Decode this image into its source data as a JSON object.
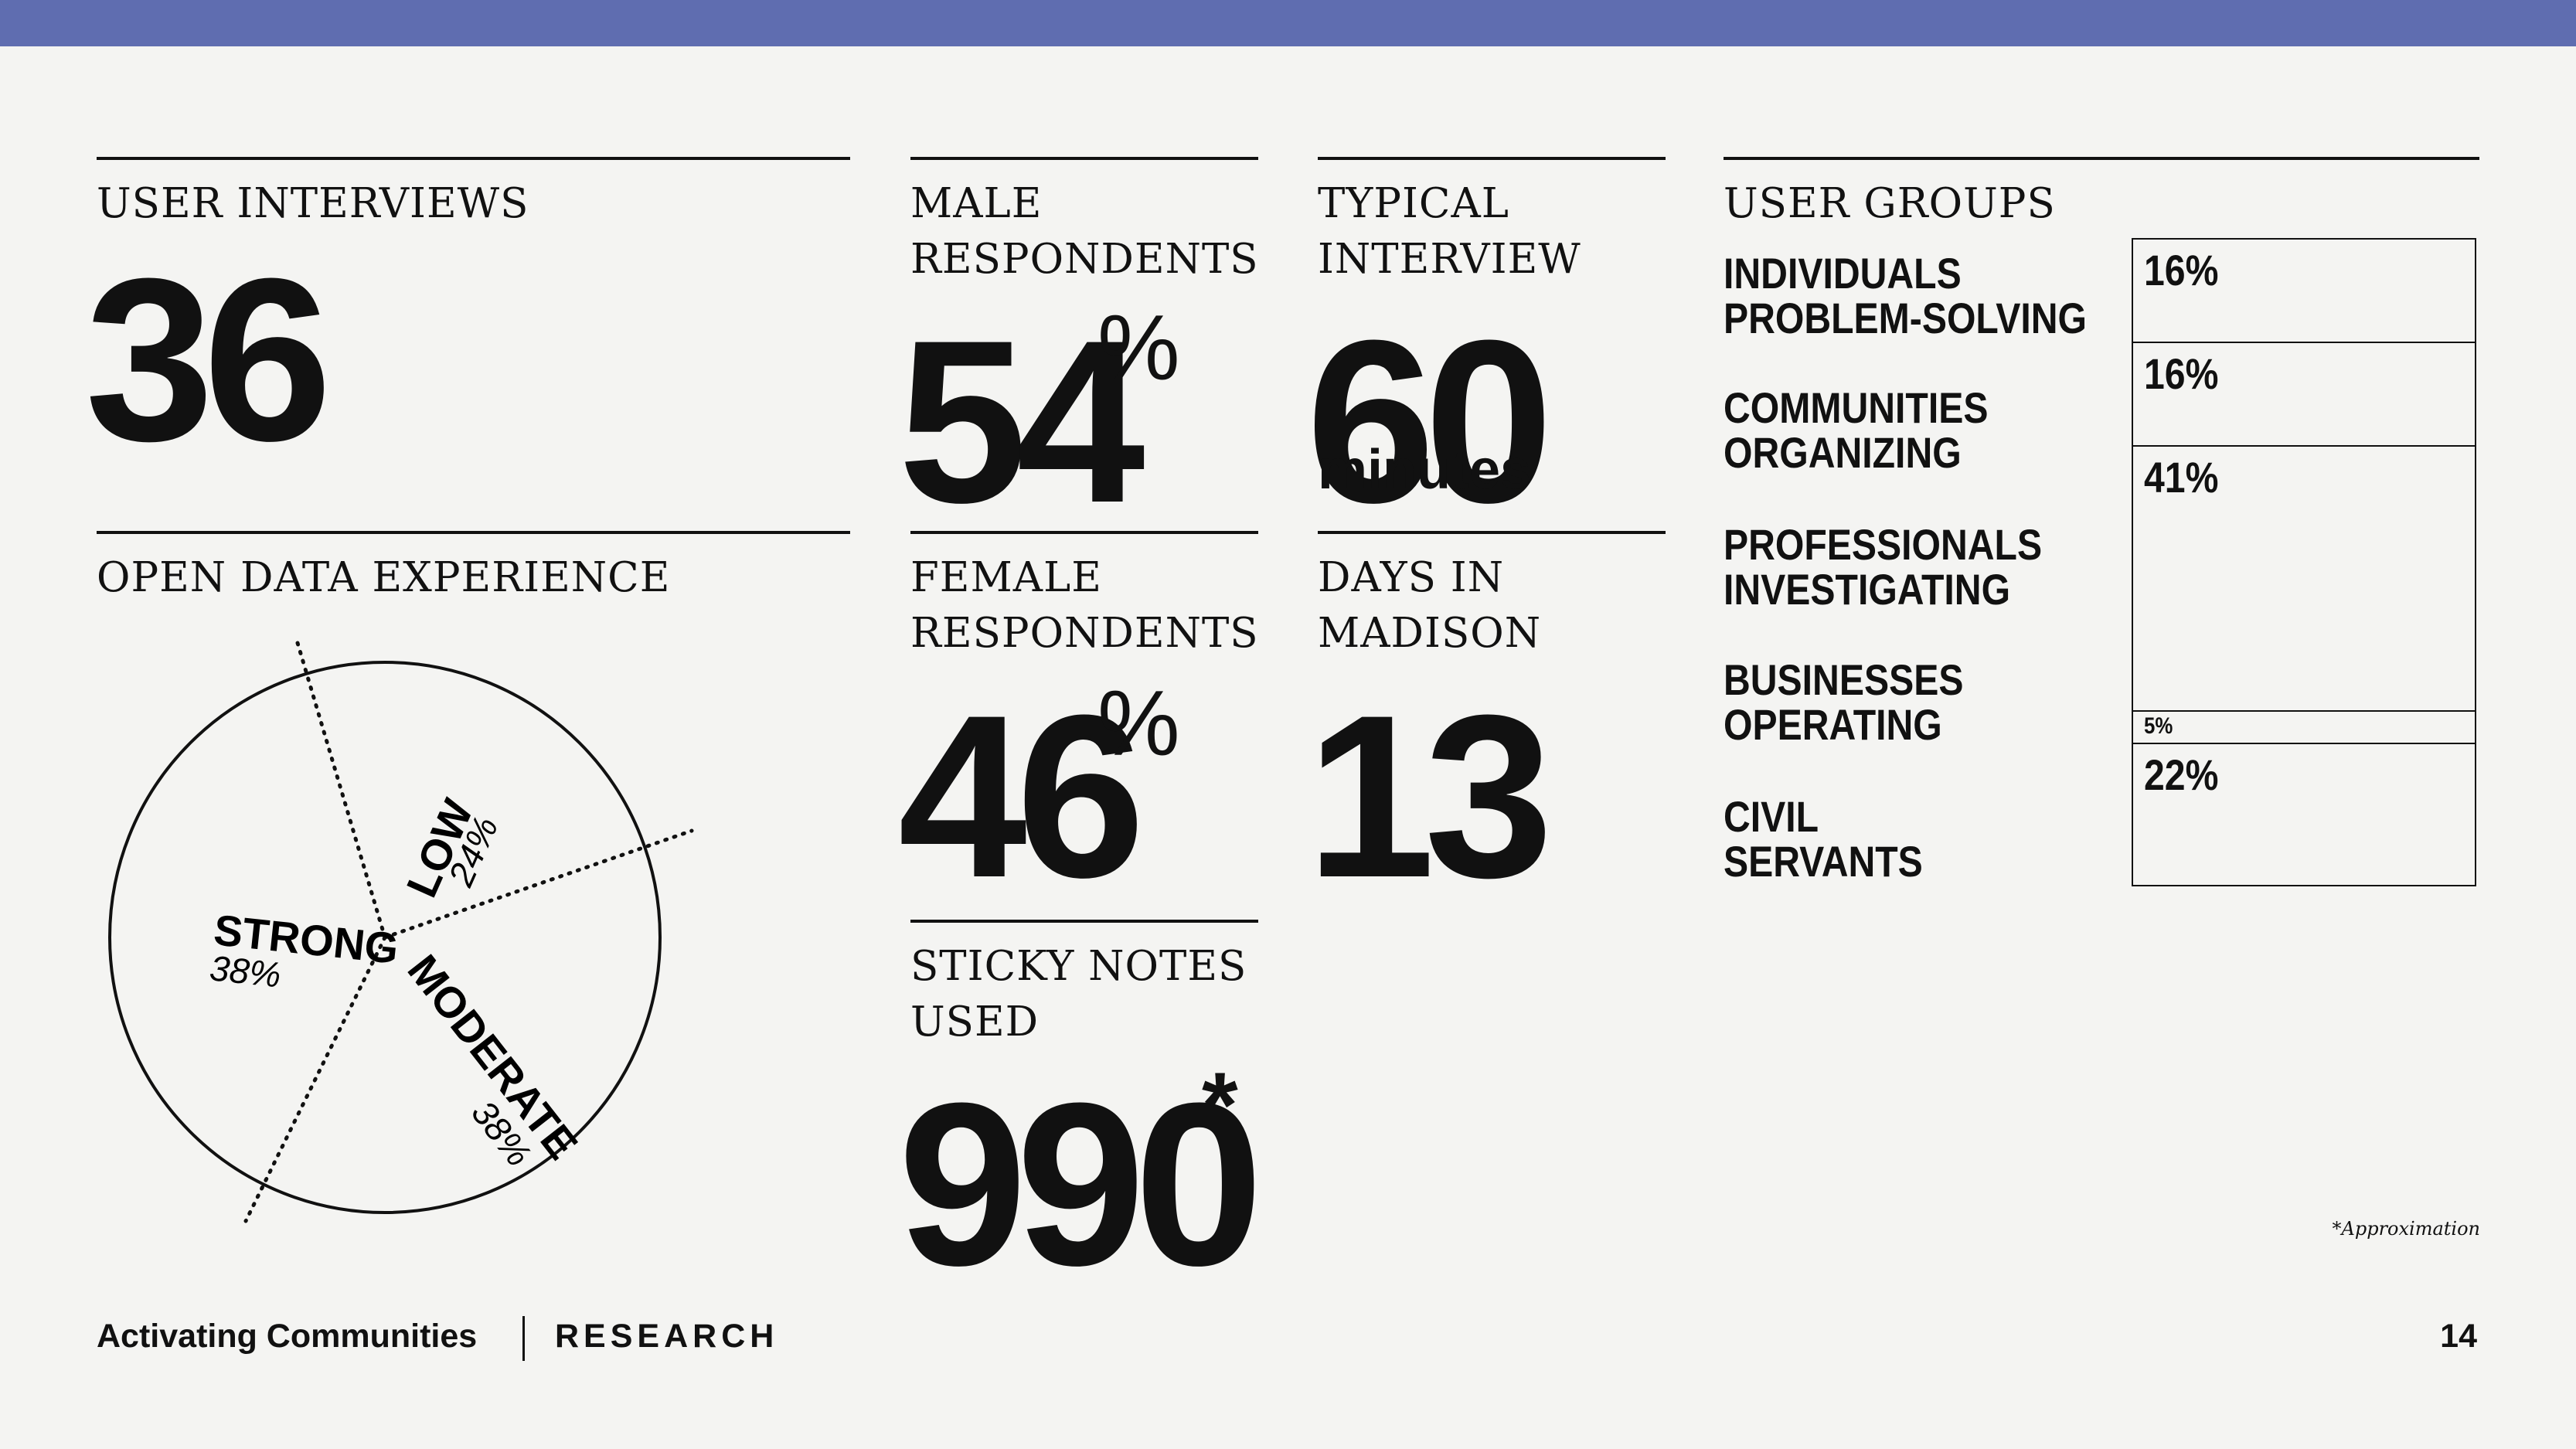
{
  "header_bar_color": "#5f6db0",
  "stats": {
    "user_interviews": {
      "label": "USER INTERVIEWS",
      "value": "36"
    },
    "male_respondents": {
      "label_lines": [
        "MALE",
        "RESPONDENTS"
      ],
      "value": "54",
      "unit": "%"
    },
    "typical_interview": {
      "label_lines": [
        "TYPICAL",
        "INTERVIEW"
      ],
      "value": "60",
      "unit": "minutes"
    },
    "female_respondents": {
      "label_lines": [
        "FEMALE",
        "RESPONDENTS"
      ],
      "value": "46",
      "unit": "%"
    },
    "days_in_madison": {
      "label_lines": [
        "DAYS IN",
        "MADISON"
      ],
      "value": "13"
    },
    "sticky_notes": {
      "label_lines": [
        "STICKY NOTES",
        "USED"
      ],
      "value": "990",
      "mark": "*"
    }
  },
  "open_data_experience": {
    "label": "OPEN DATA EXPERIENCE",
    "slices": [
      {
        "name": "STRONG",
        "percent": "38%",
        "value": 38
      },
      {
        "name": "LOW",
        "percent": "24%",
        "value": 24
      },
      {
        "name": "MODERATE",
        "percent": "38%",
        "value": 38
      }
    ]
  },
  "user_groups": {
    "label": "USER GROUPS",
    "groups": [
      {
        "lines": [
          "INDIVIDUALS",
          "PROBLEM-SOLVING"
        ],
        "percent": "16%",
        "value": 16
      },
      {
        "lines": [
          "COMMUNITIES",
          "ORGANIZING"
        ],
        "percent": "16%",
        "value": 16
      },
      {
        "lines": [
          "PROFESSIONALS",
          "INVESTIGATING"
        ],
        "percent": "41%",
        "value": 41
      },
      {
        "lines": [
          "BUSINESSES",
          "OPERATING"
        ],
        "percent": "5%",
        "value": 5
      },
      {
        "lines": [
          "CIVIL",
          "SERVANTS"
        ],
        "percent": "22%",
        "value": 22
      }
    ]
  },
  "footnote": "*Approximation",
  "footer": {
    "title": "Activating Communities",
    "section": "RESEARCH",
    "page": "14"
  }
}
